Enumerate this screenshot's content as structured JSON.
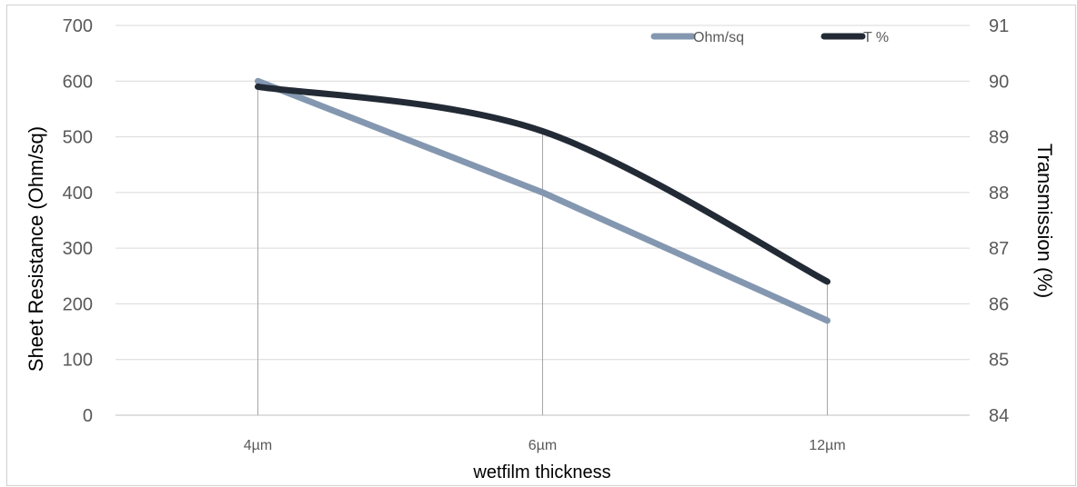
{
  "chart_data": {
    "type": "line",
    "categories": [
      "4µm",
      "6µm",
      "12µm"
    ],
    "xlabel": "wetfilm thickness",
    "ylabel": "Sheet Resistance (Ohm/sq)",
    "y2label": "Transmission (%)",
    "ylim": [
      0,
      700
    ],
    "yticks": [
      0,
      100,
      200,
      300,
      400,
      500,
      600,
      700
    ],
    "y2lim": [
      84,
      91
    ],
    "y2ticks": [
      84,
      85,
      86,
      87,
      88,
      89,
      90,
      91
    ],
    "grid": true,
    "drop_lines": true,
    "legend_position": "top-right",
    "series": [
      {
        "name": "Ohm/sq",
        "axis": "left",
        "values": [
          600,
          400,
          170
        ],
        "color": "#8497b0",
        "smooth": false
      },
      {
        "name": "T %",
        "axis": "right",
        "values": [
          89.9,
          89.1,
          86.4
        ],
        "color": "#222a35",
        "smooth": true
      }
    ]
  }
}
